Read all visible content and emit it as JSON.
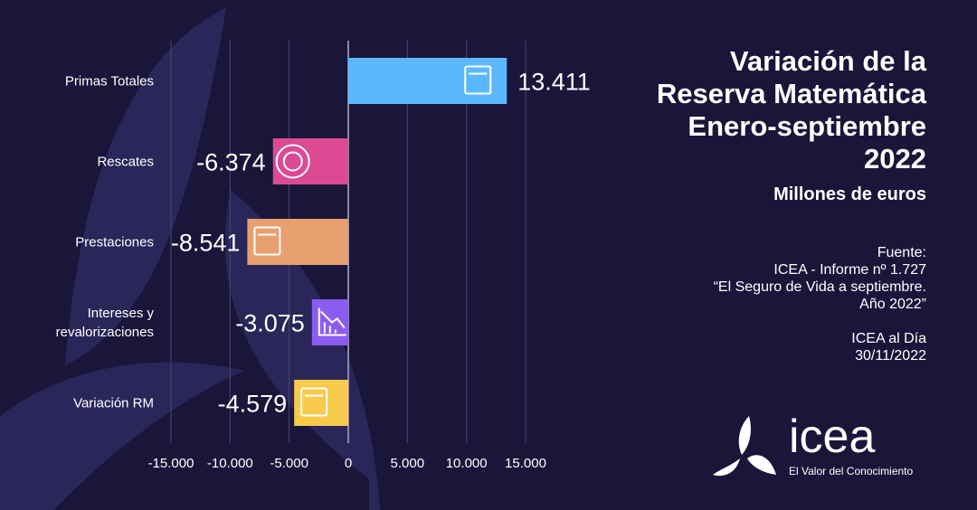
{
  "chart_data": {
    "type": "bar",
    "orientation": "horizontal",
    "categories": [
      "Primas Totales",
      "Rescates",
      "Prestaciones",
      "Intereses y revalorizaciones",
      "Variación RM"
    ],
    "category_lines": [
      [
        "Primas Totales"
      ],
      [
        "Rescates"
      ],
      [
        "Prestaciones"
      ],
      [
        "Intereses y",
        "revalorizaciones"
      ],
      [
        "Variación RM"
      ]
    ],
    "values": [
      13411,
      -6374,
      -8541,
      -3075,
      -4579
    ],
    "data_labels": [
      "13.411",
      "-6.374",
      "-8.541",
      "-3.075",
      "-4.579"
    ],
    "colors": [
      "#5bb8ff",
      "#dc4a94",
      "#e8a070",
      "#8b5cf0",
      "#f8ca4b"
    ],
    "icons": [
      "money-stack-icon",
      "lifebuoy-icon",
      "calculator-coins-icon",
      "declining-chart-icon",
      "safe-icon"
    ],
    "xlim": [
      -15000,
      15000
    ],
    "xticks": [
      -15000,
      -10000,
      -5000,
      0,
      5000,
      10000,
      15000
    ],
    "xtick_labels": [
      "-15.000",
      "-10.000",
      "-5.000",
      "0",
      "5.000",
      "10.000",
      "15.000"
    ],
    "grid": true,
    "title": "Variación de la Reserva Matemática Enero-septiembre 2022",
    "subtitle": "Millones de euros"
  },
  "title_lines": [
    "Variación de la",
    "Reserva Matemática",
    "Enero-septiembre",
    "2022"
  ],
  "subtitle": "Millones de euros",
  "source": {
    "lines": [
      "Fuente:",
      "ICEA - Informe nº 1.727",
      "“El Seguro de Vida a septiembre.",
      "Año 2022”"
    ],
    "publication": "ICEA al Día",
    "date": "30/11/2022"
  },
  "logo": {
    "name": "icea",
    "tagline": "El Valor del Conocimiento"
  },
  "colors": {
    "background": "#19163a",
    "decor": "#2a2659"
  }
}
